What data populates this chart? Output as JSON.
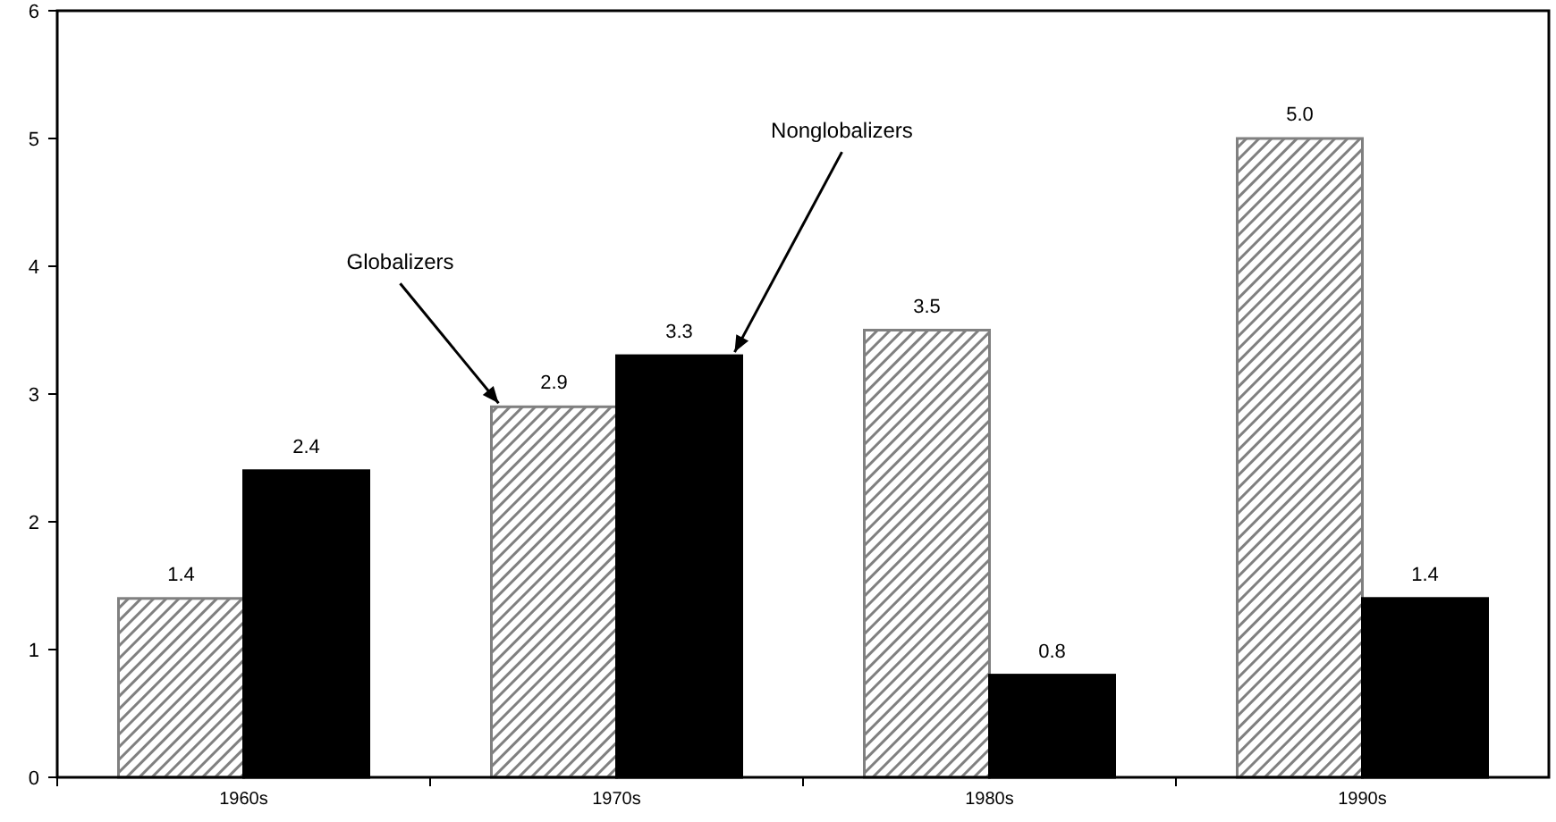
{
  "chart_data": {
    "type": "bar",
    "categories": [
      "1960s",
      "1970s",
      "1980s",
      "1990s"
    ],
    "series": [
      {
        "name": "Globalizers",
        "color": "#808080",
        "values": [
          1.4,
          2.9,
          3.5,
          5.0
        ],
        "value_labels": [
          "1.4",
          "2.9",
          "3.5",
          "5.0"
        ]
      },
      {
        "name": "Nonglobalizers",
        "color": "#000000",
        "values": [
          2.4,
          3.3,
          0.8,
          1.4
        ],
        "value_labels": [
          "2.4",
          "3.3",
          "0.8",
          "1.4"
        ]
      }
    ],
    "ylim": [
      0,
      6
    ],
    "yticks": [
      0,
      1,
      2,
      3,
      4,
      5,
      6
    ],
    "grid": false
  }
}
